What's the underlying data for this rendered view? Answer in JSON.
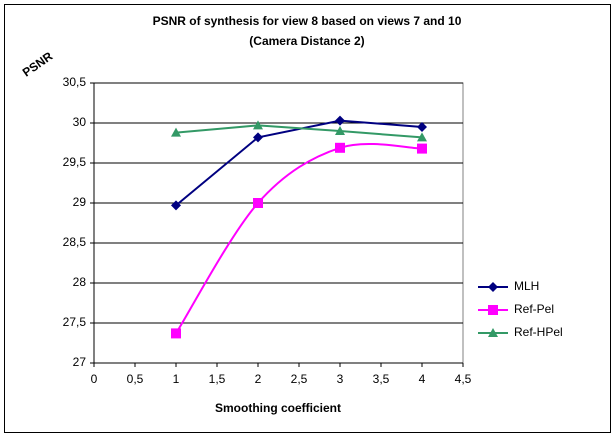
{
  "chart_data": {
    "type": "line",
    "title": "PSNR of synthesis for view 8 based on views 7 and 10",
    "subtitle": "(Camera Distance 2)",
    "y_label": "PSNR",
    "x_label": "Smoothing coefficient",
    "x": [
      1,
      2,
      3,
      4
    ],
    "series": [
      {
        "name": "MLH",
        "color": "#000080",
        "marker": "diamond",
        "smooth": false,
        "values": [
          28.97,
          29.82,
          30.03,
          29.95
        ]
      },
      {
        "name": "Ref-Pel",
        "color": "#ff00ff",
        "marker": "square",
        "smooth": true,
        "values": [
          27.37,
          29.0,
          29.69,
          29.68
        ]
      },
      {
        "name": "Ref-HPel",
        "color": "#339966",
        "marker": "triangle",
        "smooth": false,
        "values": [
          29.88,
          29.97,
          29.9,
          29.82
        ]
      }
    ],
    "xlim": [
      0,
      4.5
    ],
    "xticks": [
      0,
      {
        "value": 0.5,
        "label": "0,5"
      },
      1,
      {
        "value": 1.5,
        "label": "1,5"
      },
      2,
      {
        "value": 2.5,
        "label": "2,5"
      },
      3,
      {
        "value": 3.5,
        "label": "3,5"
      },
      4,
      {
        "value": 4.5,
        "label": "4,5"
      }
    ],
    "ylim": [
      27,
      30.5
    ],
    "yticks": [
      27,
      {
        "value": 27.5,
        "label": "27,5"
      },
      28,
      {
        "value": 28.5,
        "label": "28,5"
      },
      29,
      {
        "value": 29.5,
        "label": "29,5"
      },
      30,
      {
        "value": 30.5,
        "label": "30,5"
      }
    ],
    "grid": true,
    "legend": "right"
  }
}
